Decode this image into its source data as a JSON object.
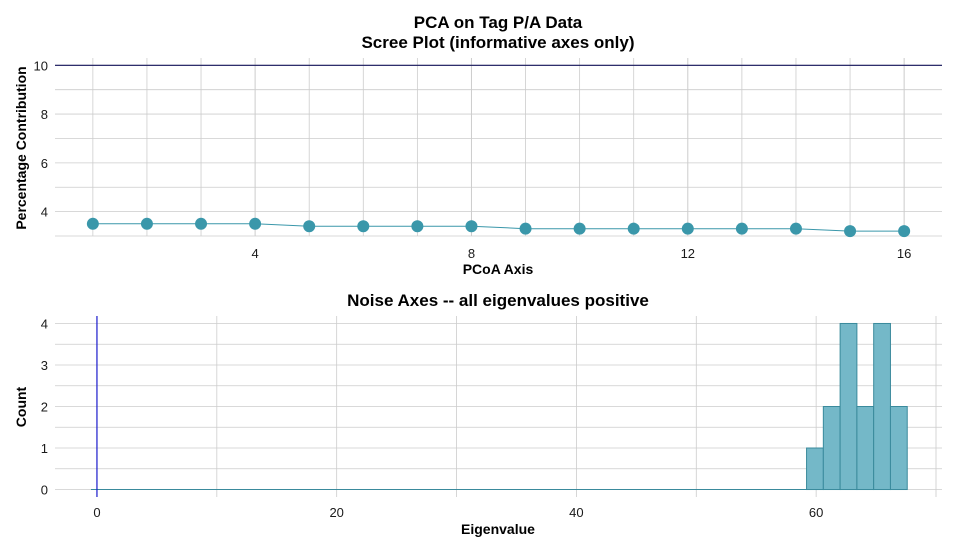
{
  "title": {
    "line1": "PCA on Tag P/A Data",
    "line2": "Scree Plot (informative axes only)"
  },
  "colors": {
    "point": "#3a97aa",
    "line": "#3a97aa",
    "bar_fill": "#74b8c8",
    "bar_stroke": "#3a8a9c",
    "hline": "#14145a",
    "vline": "#1a1acc",
    "grid": "#cccccc"
  },
  "chart_data": [
    {
      "type": "line",
      "title": "",
      "xlabel": "PCoA Axis",
      "ylabel": "Percentage Contribution",
      "xlim": [
        0.3,
        16.7
      ],
      "ylim": [
        3.0,
        10.3
      ],
      "x_ticks": [
        4,
        8,
        12,
        16
      ],
      "y_ticks": [
        4,
        6,
        8,
        10
      ],
      "grid": true,
      "hline": 10,
      "x": [
        1,
        2,
        3,
        4,
        5,
        6,
        7,
        8,
        9,
        10,
        11,
        12,
        13,
        14,
        15,
        16
      ],
      "y": [
        3.5,
        3.5,
        3.5,
        3.5,
        3.4,
        3.4,
        3.4,
        3.4,
        3.3,
        3.3,
        3.3,
        3.3,
        3.3,
        3.3,
        3.2,
        3.2
      ]
    },
    {
      "type": "bar",
      "title": "Noise Axes -- all eigenvalues positive",
      "xlabel": "Eigenvalue",
      "ylabel": "Count",
      "xlim": [
        -3.5,
        70.5
      ],
      "ylim": [
        -0.18,
        4.18
      ],
      "x_ticks": [
        0,
        20,
        40,
        60
      ],
      "y_ticks": [
        0,
        1,
        2,
        3,
        4
      ],
      "grid": true,
      "vline": 0,
      "baseline_range": [
        -0.5,
        59.2
      ],
      "bins": [
        {
          "x0": 59.2,
          "x1": 60.6,
          "count": 1
        },
        {
          "x0": 60.6,
          "x1": 62.0,
          "count": 2
        },
        {
          "x0": 62.0,
          "x1": 63.4,
          "count": 4
        },
        {
          "x0": 63.4,
          "x1": 64.8,
          "count": 2
        },
        {
          "x0": 64.8,
          "x1": 66.2,
          "count": 4
        },
        {
          "x0": 66.2,
          "x1": 67.6,
          "count": 2
        }
      ]
    }
  ]
}
